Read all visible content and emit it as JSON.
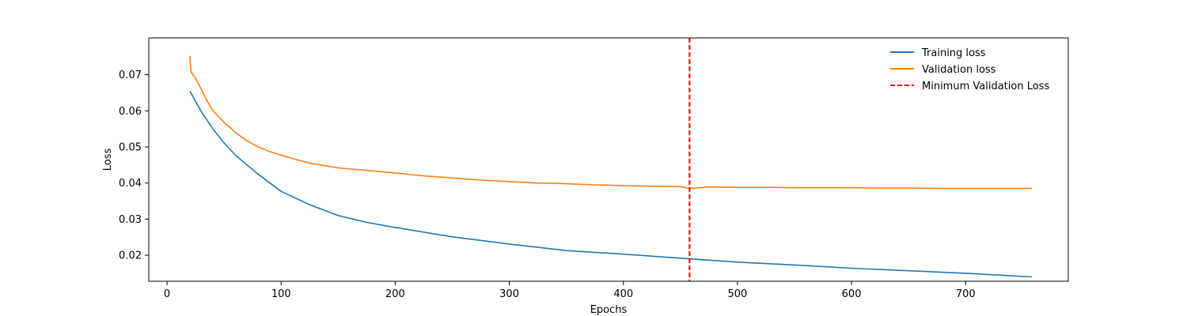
{
  "chart_data": {
    "type": "line",
    "title": "",
    "xlabel": "Epochs",
    "ylabel": "Loss",
    "xlim": [
      -16,
      790
    ],
    "ylim": [
      0.0128,
      0.0802
    ],
    "x_ticks": [
      0,
      100,
      200,
      300,
      400,
      500,
      600,
      700
    ],
    "y_ticks": [
      0.02,
      0.03,
      0.04,
      0.05,
      0.06,
      0.07
    ],
    "y_tick_labels": [
      "0.02",
      "0.03",
      "0.04",
      "0.05",
      "0.06",
      "0.07"
    ],
    "x_tick_labels": [
      "0",
      "100",
      "200",
      "300",
      "400",
      "500",
      "600",
      "700"
    ],
    "grid": false,
    "legend_position": "top-right",
    "series": [
      {
        "name": "Training loss",
        "color": "#1f77b4",
        "style": "solid",
        "x": [
          20,
          30,
          40,
          50,
          60,
          80,
          100,
          125,
          150,
          175,
          200,
          250,
          300,
          350,
          400,
          450,
          500,
          550,
          600,
          650,
          700,
          758
        ],
        "y": [
          0.0655,
          0.0598,
          0.0551,
          0.0511,
          0.0477,
          0.0424,
          0.0377,
          0.034,
          0.031,
          0.0291,
          0.0277,
          0.0251,
          0.0231,
          0.0213,
          0.0203,
          0.0192,
          0.0181,
          0.0173,
          0.0164,
          0.0157,
          0.015,
          0.014
        ]
      },
      {
        "name": "Validation loss",
        "color": "#ff7f0e",
        "style": "solid",
        "x": [
          20,
          21,
          25,
          30,
          35,
          40,
          50,
          60,
          70,
          80,
          90,
          100,
          110,
          125,
          150,
          175,
          200,
          225,
          250,
          275,
          300,
          325,
          350,
          375,
          400,
          425,
          450,
          458,
          475,
          500,
          525,
          550,
          575,
          600,
          625,
          650,
          675,
          700,
          725,
          758
        ],
        "y": [
          0.0752,
          0.0708,
          0.069,
          0.066,
          0.0628,
          0.0602,
          0.0568,
          0.054,
          0.0517,
          0.05,
          0.0487,
          0.0477,
          0.0468,
          0.0455,
          0.0442,
          0.0435,
          0.0428,
          0.042,
          0.0414,
          0.0408,
          0.0404,
          0.04,
          0.0398,
          0.0395,
          0.0393,
          0.0391,
          0.039,
          0.0385,
          0.0389,
          0.0388,
          0.0388,
          0.0387,
          0.0387,
          0.0387,
          0.0386,
          0.0386,
          0.0385,
          0.0385,
          0.0385,
          0.0385
        ]
      }
    ],
    "vline": {
      "name": "Minimum Validation Loss",
      "x": 458,
      "color": "#ff0000",
      "style": "dashed"
    }
  }
}
